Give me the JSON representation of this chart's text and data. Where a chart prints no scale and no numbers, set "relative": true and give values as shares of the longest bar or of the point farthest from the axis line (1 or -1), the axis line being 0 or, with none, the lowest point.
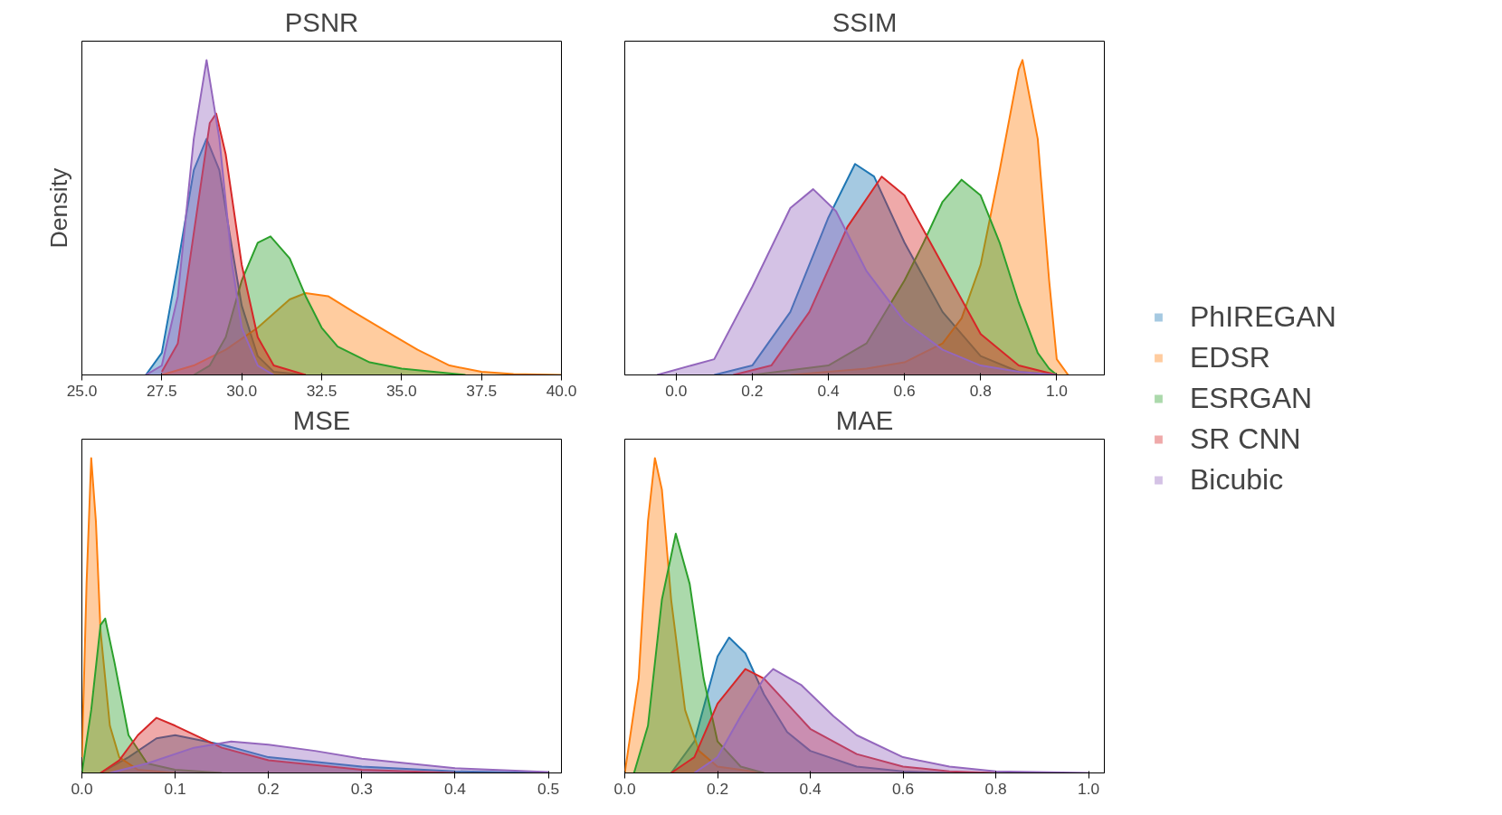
{
  "chart_data": [
    {
      "type": "area",
      "title": "PSNR",
      "ylabel": "Density",
      "relative": true,
      "tick_labels": "x",
      "xlim": [
        25,
        40
      ],
      "xticks": [
        {
          "value": 25,
          "label": "25.0"
        },
        {
          "value": 27.5,
          "label": "27.5"
        },
        {
          "value": 30,
          "label": "30.0"
        },
        {
          "value": 32.5,
          "label": "32.5"
        },
        {
          "value": 35,
          "label": "35.0"
        },
        {
          "value": 37.5,
          "label": "37.5"
        },
        {
          "value": 40,
          "label": "40.0"
        }
      ],
      "grid": false,
      "series": [
        {
          "color": "#1f77b4",
          "x": [
            27.0,
            27.5,
            28.0,
            28.5,
            28.9,
            29.3,
            29.7,
            30.0,
            30.5,
            31.0,
            32.0
          ],
          "values": [
            0,
            0.07,
            0.35,
            0.65,
            0.75,
            0.65,
            0.4,
            0.22,
            0.06,
            0.01,
            0
          ]
        },
        {
          "color": "#ff7f0e",
          "x": [
            27.5,
            28.5,
            29.5,
            30.5,
            31.5,
            32.0,
            32.7,
            33.5,
            34.5,
            35.5,
            36.5,
            37.5,
            38.5,
            40.0
          ],
          "values": [
            0,
            0.03,
            0.08,
            0.15,
            0.24,
            0.26,
            0.25,
            0.2,
            0.14,
            0.08,
            0.03,
            0.01,
            0.003,
            0
          ]
        },
        {
          "color": "#2ca02c",
          "x": [
            28.5,
            29.0,
            29.5,
            30.0,
            30.5,
            30.9,
            31.5,
            32.0,
            32.5,
            33.0,
            34.0,
            35.0,
            36.0,
            37.0
          ],
          "values": [
            0,
            0.03,
            0.12,
            0.3,
            0.42,
            0.44,
            0.37,
            0.25,
            0.15,
            0.09,
            0.04,
            0.02,
            0.01,
            0
          ]
        },
        {
          "color": "#d62728",
          "x": [
            27.5,
            28.0,
            28.5,
            29.0,
            29.2,
            29.5,
            30.0,
            30.5,
            31.0,
            32.0
          ],
          "values": [
            0.01,
            0.1,
            0.45,
            0.8,
            0.83,
            0.7,
            0.35,
            0.12,
            0.03,
            0
          ]
        },
        {
          "color": "#9467bd",
          "x": [
            27.0,
            27.5,
            28.0,
            28.5,
            28.9,
            29.3,
            29.7,
            30.0,
            30.5,
            31.0
          ],
          "values": [
            0,
            0.03,
            0.25,
            0.75,
            1.0,
            0.75,
            0.35,
            0.15,
            0.03,
            0
          ]
        }
      ]
    },
    {
      "type": "area",
      "title": "SSIM",
      "relative": true,
      "tick_labels": "x",
      "legend": "right",
      "xlim": [
        -0.135,
        1.125
      ],
      "xticks": [
        {
          "value": 0,
          "label": "0.0"
        },
        0.2,
        0.4,
        0.6,
        0.8,
        {
          "value": 1,
          "label": "1.0"
        }
      ],
      "grid": false,
      "series": [
        {
          "name": "PhIREGAN",
          "color": "#1f77b4",
          "x": [
            0.1,
            0.2,
            0.3,
            0.4,
            0.47,
            0.52,
            0.6,
            0.7,
            0.8,
            0.9,
            1.0
          ],
          "values": [
            0,
            0.03,
            0.2,
            0.5,
            0.67,
            0.63,
            0.42,
            0.2,
            0.06,
            0.01,
            0
          ]
        },
        {
          "name": "EDSR",
          "color": "#ff7f0e",
          "x": [
            0.3,
            0.5,
            0.6,
            0.7,
            0.75,
            0.8,
            0.85,
            0.9,
            0.91,
            0.95,
            0.98,
            1.0,
            1.03
          ],
          "values": [
            0,
            0.02,
            0.04,
            0.1,
            0.18,
            0.35,
            0.65,
            0.97,
            1.0,
            0.75,
            0.3,
            0.05,
            0
          ]
        },
        {
          "name": "ESRGAN",
          "color": "#2ca02c",
          "x": [
            0.2,
            0.4,
            0.5,
            0.6,
            0.65,
            0.7,
            0.75,
            0.8,
            0.85,
            0.9,
            0.95,
            0.98,
            1.0
          ],
          "values": [
            0,
            0.03,
            0.1,
            0.3,
            0.42,
            0.55,
            0.62,
            0.57,
            0.42,
            0.23,
            0.07,
            0.02,
            0
          ]
        },
        {
          "name": "SR CNN",
          "color": "#d62728",
          "x": [
            0.15,
            0.25,
            0.35,
            0.45,
            0.54,
            0.6,
            0.7,
            0.8,
            0.9,
            1.0
          ],
          "values": [
            0,
            0.03,
            0.2,
            0.47,
            0.63,
            0.57,
            0.35,
            0.13,
            0.03,
            0
          ]
        },
        {
          "name": "Bicubic",
          "color": "#9467bd",
          "x": [
            -0.05,
            0.1,
            0.2,
            0.3,
            0.36,
            0.42,
            0.5,
            0.6,
            0.7,
            0.8,
            0.9,
            1.0
          ],
          "values": [
            0,
            0.05,
            0.28,
            0.53,
            0.59,
            0.52,
            0.33,
            0.17,
            0.08,
            0.03,
            0.01,
            0
          ]
        }
      ]
    },
    {
      "type": "area",
      "title": "MSE",
      "relative": true,
      "tick_labels": "x",
      "xlim": [
        0,
        0.514
      ],
      "xticks": [
        {
          "value": 0,
          "label": "0.0"
        },
        0.1,
        0.2,
        0.3,
        0.4,
        0.5
      ],
      "grid": false,
      "series": [
        {
          "color": "#1f77b4",
          "x": [
            0.02,
            0.05,
            0.08,
            0.1,
            0.15,
            0.2,
            0.3,
            0.4,
            0.5
          ],
          "values": [
            0,
            0.05,
            0.11,
            0.12,
            0.09,
            0.05,
            0.02,
            0.005,
            0
          ]
        },
        {
          "color": "#ff7f0e",
          "x": [
            0,
            0.005,
            0.01,
            0.015,
            0.02,
            0.03,
            0.04,
            0.06,
            0.1
          ],
          "values": [
            0.05,
            0.6,
            1.0,
            0.8,
            0.45,
            0.15,
            0.05,
            0.01,
            0
          ]
        },
        {
          "color": "#2ca02c",
          "x": [
            0,
            0.01,
            0.02,
            0.025,
            0.035,
            0.05,
            0.07,
            0.1,
            0.15
          ],
          "values": [
            0,
            0.2,
            0.47,
            0.49,
            0.35,
            0.12,
            0.03,
            0.01,
            0
          ]
        },
        {
          "color": "#d62728",
          "x": [
            0.02,
            0.04,
            0.06,
            0.08,
            0.1,
            0.15,
            0.2,
            0.3,
            0.4
          ],
          "values": [
            0,
            0.04,
            0.12,
            0.175,
            0.15,
            0.08,
            0.04,
            0.01,
            0
          ]
        },
        {
          "color": "#9467bd",
          "x": [
            0.03,
            0.07,
            0.12,
            0.16,
            0.2,
            0.25,
            0.3,
            0.4,
            0.5
          ],
          "values": [
            0,
            0.03,
            0.08,
            0.1,
            0.09,
            0.07,
            0.045,
            0.015,
            0.003
          ]
        }
      ]
    },
    {
      "type": "area",
      "title": "MAE",
      "relative": true,
      "tick_labels": "x",
      "xlim": [
        0,
        1.034
      ],
      "xticks": [
        {
          "value": 0,
          "label": "0.0"
        },
        0.2,
        0.4,
        0.6,
        0.8,
        {
          "value": 1,
          "label": "1.0"
        }
      ],
      "grid": false,
      "series": [
        {
          "color": "#1f77b4",
          "x": [
            0.1,
            0.15,
            0.2,
            0.225,
            0.26,
            0.3,
            0.35,
            0.4,
            0.5,
            0.6,
            0.7
          ],
          "values": [
            0,
            0.1,
            0.37,
            0.43,
            0.38,
            0.25,
            0.13,
            0.07,
            0.02,
            0.005,
            0
          ]
        },
        {
          "color": "#ff7f0e",
          "x": [
            0,
            0.03,
            0.05,
            0.065,
            0.08,
            0.1,
            0.13,
            0.16,
            0.2,
            0.3
          ],
          "values": [
            0,
            0.3,
            0.8,
            1.0,
            0.9,
            0.55,
            0.2,
            0.07,
            0.02,
            0
          ]
        },
        {
          "color": "#2ca02c",
          "x": [
            0.02,
            0.05,
            0.08,
            0.11,
            0.14,
            0.17,
            0.2,
            0.25,
            0.3
          ],
          "values": [
            0,
            0.15,
            0.55,
            0.76,
            0.6,
            0.3,
            0.1,
            0.02,
            0
          ]
        },
        {
          "color": "#d62728",
          "x": [
            0.1,
            0.15,
            0.2,
            0.26,
            0.3,
            0.35,
            0.4,
            0.5,
            0.6,
            0.7,
            0.8
          ],
          "values": [
            0,
            0.05,
            0.22,
            0.33,
            0.3,
            0.22,
            0.14,
            0.06,
            0.02,
            0.005,
            0
          ]
        },
        {
          "color": "#9467bd",
          "x": [
            0.15,
            0.2,
            0.25,
            0.3,
            0.32,
            0.38,
            0.45,
            0.5,
            0.6,
            0.7,
            0.8,
            1.0
          ],
          "values": [
            0,
            0.05,
            0.18,
            0.3,
            0.33,
            0.28,
            0.18,
            0.12,
            0.05,
            0.02,
            0.005,
            0
          ]
        }
      ]
    }
  ]
}
